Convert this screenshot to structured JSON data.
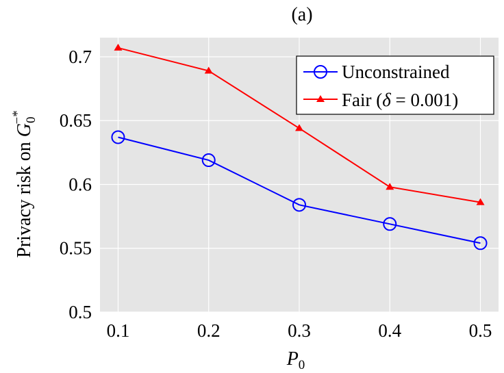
{
  "chart_data": {
    "type": "line",
    "title": "(a)",
    "xlabel": "P",
    "xlabel_sub": "0",
    "ylabel": "Privacy risk on ",
    "ylabel_symbol": "G",
    "ylabel_sub": "0",
    "ylabel_sup": "−*",
    "x": [
      0.1,
      0.2,
      0.3,
      0.4,
      0.5
    ],
    "x_tick_labels": [
      "0.1",
      "0.2",
      "0.3",
      "0.4",
      "0.5"
    ],
    "y_ticks": [
      0.5,
      0.55,
      0.6,
      0.65,
      0.7
    ],
    "y_tick_labels": [
      "0.5",
      "0.55",
      "0.6",
      "0.65",
      "0.7"
    ],
    "xlim": [
      0.08,
      0.52
    ],
    "ylim": [
      0.5,
      0.715
    ],
    "grid": true,
    "legend_position": "top-right",
    "series": [
      {
        "name": "Unconstrained",
        "color": "#0000ff",
        "marker": "circle",
        "values": [
          0.637,
          0.619,
          0.584,
          0.569,
          0.554
        ]
      },
      {
        "name": "Fair (",
        "name_symbol": "δ",
        "name_rest": " = 0.001)",
        "color": "#ff0000",
        "marker": "triangle",
        "values": [
          0.707,
          0.689,
          0.644,
          0.598,
          0.586
        ]
      }
    ]
  },
  "colors": {
    "plot_background": "#e5e5e5",
    "grid": "#ffffff"
  }
}
